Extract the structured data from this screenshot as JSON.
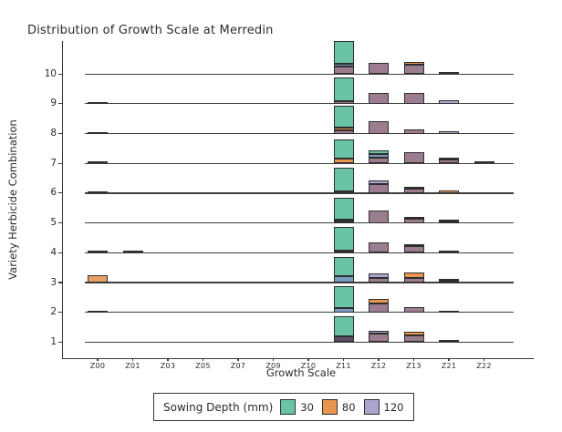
{
  "chart_data": {
    "type": "bar",
    "title": "Distribution of Growth Scale at Merredin",
    "xlabel": "Growth Scale",
    "ylabel": "Variety Herbicide Combination",
    "categories": [
      "Z00",
      "Z01",
      "Z03",
      "Z05",
      "Z07",
      "Z09",
      "Z10",
      "Z11",
      "Z12",
      "Z13",
      "Z21",
      "Z22"
    ],
    "y_ticks": [
      "10",
      "9",
      "8",
      "7",
      "6",
      "5",
      "4",
      "3",
      "2",
      "1"
    ],
    "grid": "row-baselines",
    "legend_position": "bottom",
    "legend": {
      "title": "Sowing Depth (mm)",
      "entries": [
        {
          "label": "30",
          "color": "#69C3A4"
        },
        {
          "label": "80",
          "color": "#E8954E"
        },
        {
          "label": "120",
          "color": "#ABA6CF"
        }
      ]
    },
    "palette": {
      "teal": "#69C3A4",
      "orange": "#E8954E",
      "orange_light": "#E8A264",
      "lavender": "#ABA6CF",
      "mauve": "#9C7D90",
      "blue": "#7B9AC2",
      "darkmauve": "#5E4D63",
      "dark": "#2B2B2B",
      "gray": "#8A8A8A"
    },
    "rows": [
      {
        "row": 10,
        "bars": [
          {
            "x": "Z11",
            "segments": [
              [
                "mauve",
                8
              ],
              [
                "blue",
                3
              ],
              [
                "teal",
                25
              ]
            ]
          },
          {
            "x": "Z12",
            "segments": [
              [
                "mauve",
                12
              ]
            ]
          },
          {
            "x": "Z13",
            "segments": [
              [
                "mauve",
                10
              ],
              [
                "orange",
                3
              ]
            ]
          },
          {
            "x": "Z21",
            "segments": [
              [
                "dark",
                2
              ]
            ]
          }
        ]
      },
      {
        "row": 9,
        "bars": [
          {
            "x": "Z00",
            "segments": [
              [
                "dark",
                2
              ]
            ]
          },
          {
            "x": "Z11",
            "segments": [
              [
                "mauve",
                3
              ],
              [
                "teal",
                26
              ]
            ]
          },
          {
            "x": "Z12",
            "segments": [
              [
                "mauve",
                12
              ]
            ]
          },
          {
            "x": "Z13",
            "segments": [
              [
                "mauve",
                12
              ]
            ]
          },
          {
            "x": "Z21",
            "segments": [
              [
                "lavender",
                4
              ]
            ]
          }
        ]
      },
      {
        "row": 8,
        "bars": [
          {
            "x": "Z00",
            "segments": [
              [
                "dark",
                2
              ]
            ]
          },
          {
            "x": "Z11",
            "segments": [
              [
                "mauve",
                4
              ],
              [
                "orange",
                3
              ],
              [
                "teal",
                24
              ]
            ]
          },
          {
            "x": "Z12",
            "segments": [
              [
                "mauve",
                14
              ]
            ]
          },
          {
            "x": "Z13",
            "segments": [
              [
                "mauve",
                5
              ]
            ]
          },
          {
            "x": "Z21",
            "segments": [
              [
                "lavender",
                3
              ]
            ]
          }
        ]
      },
      {
        "row": 7,
        "bars": [
          {
            "x": "Z00",
            "segments": [
              [
                "dark",
                2
              ]
            ]
          },
          {
            "x": "Z11",
            "segments": [
              [
                "orange",
                5
              ],
              [
                "teal",
                21
              ]
            ]
          },
          {
            "x": "Z12",
            "segments": [
              [
                "mauve",
                6
              ],
              [
                "blue",
                4
              ],
              [
                "teal",
                4
              ]
            ]
          },
          {
            "x": "Z13",
            "segments": [
              [
                "mauve",
                12
              ]
            ]
          },
          {
            "x": "Z21",
            "segments": [
              [
                "mauve",
                4
              ],
              [
                "orange",
                2
              ]
            ]
          },
          {
            "x": "Z22",
            "segments": [
              [
                "dark",
                2
              ]
            ]
          }
        ]
      },
      {
        "row": 6,
        "bars": [
          {
            "x": "Z00",
            "segments": [
              [
                "dark",
                2
              ]
            ]
          },
          {
            "x": "Z11",
            "segments": [
              [
                "mauve",
                2
              ],
              [
                "teal",
                26
              ]
            ]
          },
          {
            "x": "Z12",
            "segments": [
              [
                "mauve",
                10
              ],
              [
                "lavender",
                4
              ]
            ]
          },
          {
            "x": "Z13",
            "segments": [
              [
                "mauve",
                5
              ],
              [
                "orange",
                2
              ]
            ]
          },
          {
            "x": "Z21",
            "segments": [
              [
                "orange",
                3
              ]
            ]
          }
        ]
      },
      {
        "row": 5,
        "bars": [
          {
            "x": "Z11",
            "segments": [
              [
                "lavender",
                2
              ],
              [
                "blue",
                2
              ],
              [
                "teal",
                24
              ]
            ]
          },
          {
            "x": "Z12",
            "segments": [
              [
                "mauve",
                14
              ]
            ]
          },
          {
            "x": "Z13",
            "segments": [
              [
                "mauve",
                5
              ],
              [
                "orange",
                2
              ]
            ]
          },
          {
            "x": "Z21",
            "segments": [
              [
                "mauve",
                2
              ],
              [
                "orange",
                2
              ]
            ]
          }
        ]
      },
      {
        "row": 4,
        "bars": [
          {
            "x": "Z00",
            "segments": [
              [
                "teal",
                2
              ]
            ]
          },
          {
            "x": "Z01",
            "segments": [
              [
                "dark",
                2
              ]
            ]
          },
          {
            "x": "Z11",
            "segments": [
              [
                "orange",
                2
              ],
              [
                "teal",
                26
              ]
            ]
          },
          {
            "x": "Z12",
            "segments": [
              [
                "mauve",
                11
              ]
            ]
          },
          {
            "x": "Z13",
            "segments": [
              [
                "mauve",
                7
              ],
              [
                "lavender",
                2
              ]
            ]
          },
          {
            "x": "Z21",
            "segments": [
              [
                "dark",
                2
              ]
            ]
          }
        ]
      },
      {
        "row": 3,
        "bars": [
          {
            "x": "Z00",
            "segments": [
              [
                "orange_light",
                8
              ]
            ]
          },
          {
            "x": "Z11",
            "segments": [
              [
                "blue",
                7
              ],
              [
                "teal",
                21
              ]
            ]
          },
          {
            "x": "Z12",
            "segments": [
              [
                "mauve",
                5
              ],
              [
                "lavender",
                5
              ]
            ]
          },
          {
            "x": "Z13",
            "segments": [
              [
                "mauve",
                5
              ],
              [
                "orange",
                6
              ]
            ]
          },
          {
            "x": "Z21",
            "segments": [
              [
                "mauve",
                2
              ],
              [
                "orange",
                2
              ]
            ]
          }
        ]
      },
      {
        "row": 2,
        "bars": [
          {
            "x": "Z00",
            "segments": [
              [
                "dark",
                2
              ]
            ]
          },
          {
            "x": "Z11",
            "segments": [
              [
                "blue",
                5
              ],
              [
                "teal",
                24
              ]
            ]
          },
          {
            "x": "Z12",
            "segments": [
              [
                "mauve",
                10
              ],
              [
                "orange",
                5
              ]
            ]
          },
          {
            "x": "Z13",
            "segments": [
              [
                "mauve",
                6
              ]
            ]
          },
          {
            "x": "Z21",
            "segments": [
              [
                "dark",
                2
              ]
            ]
          }
        ]
      },
      {
        "row": 1,
        "bars": [
          {
            "x": "Z11",
            "segments": [
              [
                "darkmauve",
                6
              ],
              [
                "teal",
                22
              ]
            ]
          },
          {
            "x": "Z12",
            "segments": [
              [
                "mauve",
                9
              ],
              [
                "lavender",
                3
              ]
            ]
          },
          {
            "x": "Z13",
            "segments": [
              [
                "mauve",
                7
              ],
              [
                "orange",
                4
              ]
            ]
          },
          {
            "x": "Z21",
            "segments": [
              [
                "gray",
                2
              ]
            ]
          }
        ]
      }
    ]
  }
}
